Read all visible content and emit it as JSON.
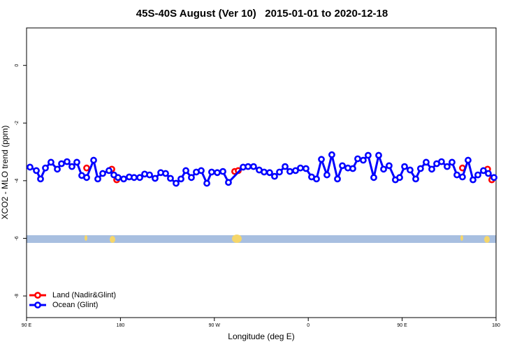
{
  "chart_data": {
    "type": "line",
    "title": "45S-40S August (Ver 10)   2015-01-01 to 2020-12-18",
    "x_label": "Longitude (deg E)",
    "y_label": "XCO2 - MLO trend (ppm)",
    "xlim": [
      90,
      540
    ],
    "ylim": [
      -8.75,
      1.3
    ],
    "xticks": [
      {
        "value": 90,
        "label": "90 E"
      },
      180,
      {
        "value": 270,
        "label": "90 W"
      },
      {
        "value": 360,
        "label": "0"
      },
      {
        "value": 450,
        "label": "90 E"
      },
      {
        "value": 540,
        "label": "180"
      }
    ],
    "yticks": [
      0,
      -2,
      -4,
      -6,
      -8
    ],
    "legend": "bottom-left",
    "series": [
      {
        "name": "Land (Nadir&Glint)",
        "color": "#ff0000",
        "x": [
          147.6,
          null,
          171.7,
          176.4,
          null,
          289.5,
          292.9,
          null,
          507.8,
          null,
          531.9,
          535.9
        ],
        "values": [
          -3.56,
          null,
          -3.6,
          -3.97,
          null,
          -3.68,
          -3.65,
          null,
          -3.56,
          null,
          -3.6,
          -3.97
        ]
      },
      {
        "name": "Ocean (Glint)",
        "color": "#0000ff",
        "x": [
          93.3,
          99.4,
          103.4,
          108.1,
          113.4,
          119.5,
          123.5,
          128.8,
          133.5,
          138.2,
          142.9,
          147.6,
          154.3,
          158.3,
          163,
          169,
          173.7,
          177.7,
          183.1,
          188.4,
          193.1,
          198.5,
          203.2,
          207.9,
          213.2,
          218.6,
          223.3,
          227.9,
          233.3,
          238,
          242.7,
          248,
          252.7,
          257.4,
          262.8,
          267.4,
          272.8,
          278.2,
          283.5,
          297.6,
          302.3,
          307.6,
          313,
          317.7,
          323,
          327.7,
          332.4,
          337.8,
          342.4,
          347.8,
          352.5,
          357.8,
          363.2,
          367.9,
          372.6,
          377.9,
          382.6,
          388,
          392.7,
          398,
          402.7,
          407.4,
          412.7,
          417.4,
          422.8,
          427.5,
          432.2,
          437.5,
          443.5,
          447.6,
          452.3,
          457.6,
          463,
          467.6,
          473,
          478.4,
          483.1,
          487.7,
          493.1,
          497.8,
          502.5,
          507.8,
          513.2,
          517.9,
          522.6,
          527.9,
          532.6,
          538
        ],
        "values": [
          -3.53,
          -3.65,
          -3.94,
          -3.56,
          -3.36,
          -3.6,
          -3.41,
          -3.34,
          -3.51,
          -3.36,
          -3.82,
          -3.89,
          -3.29,
          -3.94,
          -3.75,
          -3.65,
          -3.8,
          -3.89,
          -3.94,
          -3.87,
          -3.89,
          -3.89,
          -3.77,
          -3.8,
          -3.92,
          -3.72,
          -3.75,
          -3.92,
          -4.09,
          -3.94,
          -3.65,
          -3.89,
          -3.7,
          -3.65,
          -4.09,
          -3.7,
          -3.72,
          -3.68,
          -4.06,
          -3.53,
          -3.51,
          -3.51,
          -3.63,
          -3.7,
          -3.72,
          -3.85,
          -3.7,
          -3.51,
          -3.68,
          -3.65,
          -3.56,
          -3.58,
          -3.87,
          -3.94,
          -3.26,
          -3.8,
          -3.1,
          -3.94,
          -3.48,
          -3.56,
          -3.58,
          -3.24,
          -3.29,
          -3.12,
          -3.89,
          -3.12,
          -3.6,
          -3.48,
          -3.97,
          -3.89,
          -3.51,
          -3.63,
          -3.94,
          -3.58,
          -3.36,
          -3.6,
          -3.41,
          -3.34,
          -3.51,
          -3.36,
          -3.8,
          -3.87,
          -3.29,
          -3.97,
          -3.8,
          -3.65,
          -3.75,
          -3.89
        ]
      }
    ]
  }
}
